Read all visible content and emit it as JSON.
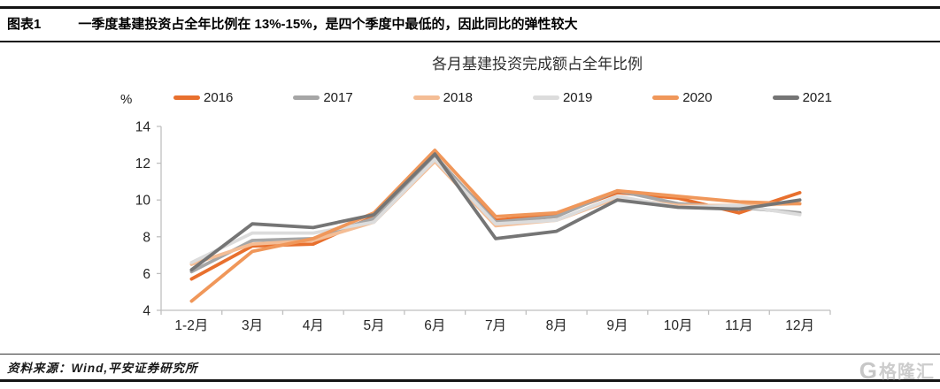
{
  "header": {
    "label": "图表1",
    "title": "一季度基建投资占全年比例在 13%-15%，是四个季度中最低的，因此同比的弹性较大"
  },
  "footer": {
    "source": "资料来源：Wind,平安证券研究所",
    "watermark_g": "G",
    "watermark": "格隆汇"
  },
  "chart_data": {
    "type": "line",
    "title": "各月基建投资完成额占全年比例",
    "ylabel": "%",
    "xlabel": "",
    "ylim": [
      4,
      14
    ],
    "ytick_step": 2,
    "grid": false,
    "legend_position": "top",
    "axis_color": "#bfbfbf",
    "tick_label_color": "#262626",
    "categories": [
      "1-2月",
      "3月",
      "4月",
      "5月",
      "6月",
      "7月",
      "8月",
      "9月",
      "10月",
      "11月",
      "12月"
    ],
    "series": [
      {
        "name": "2016",
        "color": "#e8702e",
        "values": [
          5.7,
          7.5,
          7.6,
          9.1,
          12.3,
          8.9,
          9.2,
          10.4,
          10.1,
          9.3,
          10.4
        ]
      },
      {
        "name": "2017",
        "color": "#a6a6a6",
        "values": [
          6.1,
          7.8,
          7.9,
          9.0,
          12.4,
          8.8,
          9.1,
          10.5,
          9.8,
          9.6,
          9.3
        ]
      },
      {
        "name": "2018",
        "color": "#f4bd95",
        "values": [
          6.5,
          7.6,
          7.8,
          8.8,
          12.1,
          8.6,
          8.9,
          10.1,
          9.7,
          9.7,
          9.8
        ]
      },
      {
        "name": "2019",
        "color": "#dcdcdc",
        "values": [
          6.6,
          8.2,
          8.2,
          8.8,
          12.2,
          8.7,
          8.9,
          10.2,
          9.6,
          9.7,
          9.2
        ]
      },
      {
        "name": "2020",
        "color": "#f0975a",
        "values": [
          4.5,
          7.2,
          7.9,
          9.3,
          12.7,
          9.1,
          9.3,
          10.5,
          10.2,
          9.9,
          9.8
        ]
      },
      {
        "name": "2021",
        "color": "#757575",
        "values": [
          6.2,
          8.7,
          8.5,
          9.2,
          12.5,
          7.9,
          8.3,
          10.0,
          9.6,
          9.5,
          10.0
        ]
      }
    ]
  }
}
